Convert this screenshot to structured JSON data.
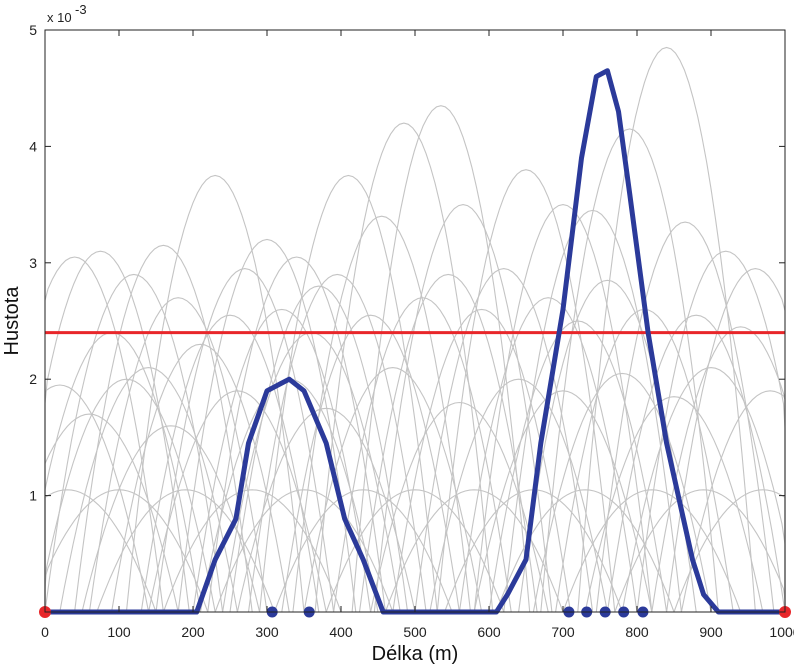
{
  "chart_data": {
    "type": "line",
    "title": "",
    "xlabel": "Délka (m)",
    "ylabel": "Hustota",
    "y_exponent_label": "x 10",
    "y_exponent_power": "-3",
    "xlim": [
      0,
      1000
    ],
    "ylim": [
      0,
      5
    ],
    "x_ticks": [
      0,
      100,
      200,
      300,
      400,
      500,
      600,
      700,
      800,
      900,
      1000
    ],
    "x_tick_labels": [
      "0",
      "100",
      "200",
      "300",
      "400",
      "500",
      "600",
      "700",
      "800",
      "900",
      "1000"
    ],
    "y_ticks": [
      1,
      2,
      3,
      4,
      5
    ],
    "y_tick_labels": [
      "1",
      "2",
      "3",
      "4",
      "5"
    ],
    "grid": false,
    "colors": {
      "density_line": "#2b3a9a",
      "threshold_line": "#e8262a",
      "background_curves": "#c4c4c4",
      "points": "#2b3a9a",
      "endpoints": "#e8262a"
    },
    "series": [
      {
        "role": "density",
        "x": [
          0,
          205,
          230,
          258,
          275,
          300,
          330,
          350,
          380,
          405,
          430,
          457,
          610,
          625,
          650,
          670,
          700,
          725,
          745,
          760,
          775,
          790,
          815,
          840,
          875,
          890,
          910,
          1000
        ],
        "values": [
          0,
          0,
          0.45,
          0.8,
          1.45,
          1.9,
          2.0,
          1.9,
          1.45,
          0.8,
          0.45,
          0,
          0,
          0.15,
          0.45,
          1.45,
          2.6,
          3.9,
          4.6,
          4.65,
          4.3,
          3.6,
          2.4,
          1.45,
          0.45,
          0.15,
          0,
          0
        ]
      },
      {
        "role": "threshold",
        "x": [
          0,
          1000
        ],
        "values": [
          2.4,
          2.4
        ]
      }
    ],
    "background_curves": [
      {
        "center": 40,
        "height": 3.05
      },
      {
        "center": 75,
        "height": 3.1
      },
      {
        "center": 120,
        "height": 2.9
      },
      {
        "center": 160,
        "height": 3.15
      },
      {
        "center": 230,
        "height": 3.75
      },
      {
        "center": 270,
        "height": 2.95
      },
      {
        "center": 300,
        "height": 3.2
      },
      {
        "center": 340,
        "height": 3.05
      },
      {
        "center": 370,
        "height": 2.8
      },
      {
        "center": 410,
        "height": 3.75
      },
      {
        "center": 455,
        "height": 3.4
      },
      {
        "center": 485,
        "height": 4.2
      },
      {
        "center": 535,
        "height": 4.35
      },
      {
        "center": 565,
        "height": 3.5
      },
      {
        "center": 650,
        "height": 3.8
      },
      {
        "center": 700,
        "height": 3.5
      },
      {
        "center": 740,
        "height": 3.45
      },
      {
        "center": 790,
        "height": 4.15
      },
      {
        "center": 840,
        "height": 4.85
      },
      {
        "center": 865,
        "height": 3.35
      },
      {
        "center": 920,
        "height": 3.1
      },
      {
        "center": 960,
        "height": 2.95
      },
      {
        "center": 90,
        "height": 2.4
      },
      {
        "center": 140,
        "height": 2.1
      },
      {
        "center": 180,
        "height": 2.7
      },
      {
        "center": 210,
        "height": 2.3
      },
      {
        "center": 250,
        "height": 2.55
      },
      {
        "center": 320,
        "height": 2.6
      },
      {
        "center": 360,
        "height": 2.4
      },
      {
        "center": 395,
        "height": 2.9
      },
      {
        "center": 440,
        "height": 2.55
      },
      {
        "center": 510,
        "height": 2.7
      },
      {
        "center": 545,
        "height": 2.9
      },
      {
        "center": 590,
        "height": 2.6
      },
      {
        "center": 620,
        "height": 2.95
      },
      {
        "center": 680,
        "height": 2.7
      },
      {
        "center": 720,
        "height": 2.5
      },
      {
        "center": 760,
        "height": 2.85
      },
      {
        "center": 810,
        "height": 2.6
      },
      {
        "center": 880,
        "height": 2.55
      },
      {
        "center": 940,
        "height": 2.45
      },
      {
        "center": 20,
        "height": 1.95
      },
      {
        "center": 60,
        "height": 1.7
      },
      {
        "center": 110,
        "height": 2.0
      },
      {
        "center": 170,
        "height": 1.6
      },
      {
        "center": 260,
        "height": 1.9
      },
      {
        "center": 330,
        "height": 2.0
      },
      {
        "center": 380,
        "height": 1.75
      },
      {
        "center": 470,
        "height": 2.1
      },
      {
        "center": 560,
        "height": 1.8
      },
      {
        "center": 640,
        "height": 2.0
      },
      {
        "center": 700,
        "height": 1.9
      },
      {
        "center": 780,
        "height": 2.05
      },
      {
        "center": 850,
        "height": 1.85
      },
      {
        "center": 900,
        "height": 2.1
      },
      {
        "center": 980,
        "height": 1.9
      },
      {
        "center": 30,
        "height": 1.05
      },
      {
        "center": 100,
        "height": 1.05
      },
      {
        "center": 190,
        "height": 1.05
      },
      {
        "center": 280,
        "height": 1.05
      },
      {
        "center": 350,
        "height": 1.05
      },
      {
        "center": 430,
        "height": 1.05
      },
      {
        "center": 500,
        "height": 1.05
      },
      {
        "center": 580,
        "height": 1.05
      },
      {
        "center": 660,
        "height": 1.05
      },
      {
        "center": 730,
        "height": 1.05
      },
      {
        "center": 820,
        "height": 1.05
      },
      {
        "center": 890,
        "height": 1.05
      },
      {
        "center": 970,
        "height": 1.05
      }
    ],
    "blue_points_x": [
      307,
      357,
      708,
      732,
      757,
      782,
      808
    ],
    "red_points_x": [
      0,
      1000
    ]
  }
}
